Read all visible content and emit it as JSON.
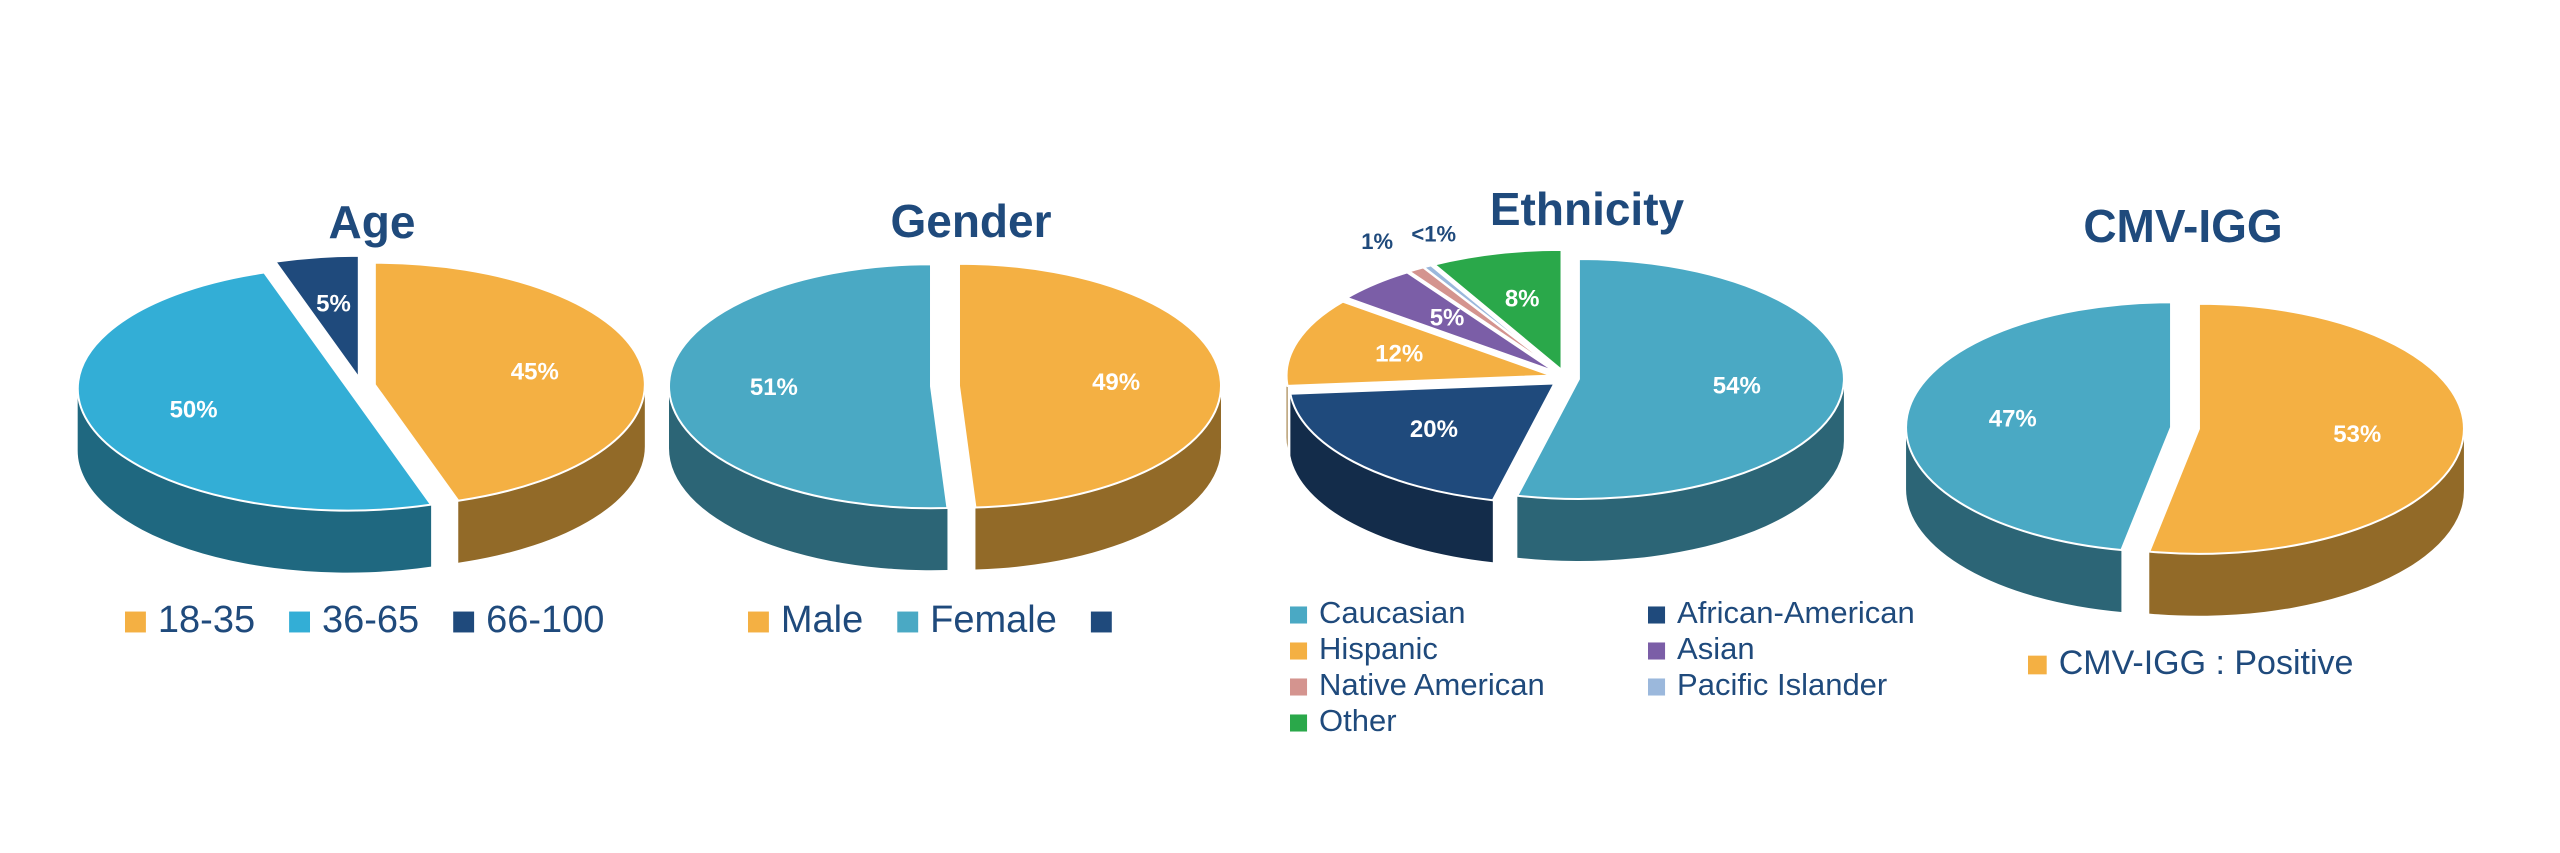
{
  "chart_data": [
    {
      "type": "pie",
      "title": "Age",
      "categories": [
        "18-35",
        "36-65",
        "66-100"
      ],
      "values": [
        45,
        50,
        5
      ],
      "value_labels": [
        "45%",
        "50%",
        "5%"
      ],
      "colors": [
        "#f4b043",
        "#33aed6",
        "#1f4a7c"
      ]
    },
    {
      "type": "pie",
      "title": "Gender",
      "categories": [
        "Male",
        "Female",
        null
      ],
      "values": [
        49,
        51,
        null
      ],
      "value_labels": [
        "49%",
        "51%",
        null
      ],
      "colors": [
        "#f4b043",
        "#4aa9c4",
        "#1f4a7c"
      ]
    },
    {
      "type": "pie",
      "title": "Ethnicity",
      "categories": [
        "Caucasian",
        "African-American",
        "Hispanic",
        "Asian",
        "Native American",
        "Pacific Islander",
        "Other"
      ],
      "values": [
        54,
        20,
        12,
        5,
        1,
        0.5,
        8
      ],
      "value_labels": [
        "54%",
        "20%",
        "12%",
        "5%",
        "1%",
        "<1%",
        "8%"
      ],
      "colors": [
        "#4aa9c4",
        "#1f4a7c",
        "#f4b043",
        "#7b5ea7",
        "#d4948f",
        "#9bb8dc",
        "#2aa84a"
      ]
    },
    {
      "type": "pie",
      "title": "CMV-IGG",
      "categories": [
        "CMV-IGG : Positive",
        null
      ],
      "values": [
        53,
        47
      ],
      "value_labels": [
        "53%",
        "47%"
      ],
      "colors": [
        "#f4b043",
        "#4aa9c4"
      ]
    }
  ]
}
